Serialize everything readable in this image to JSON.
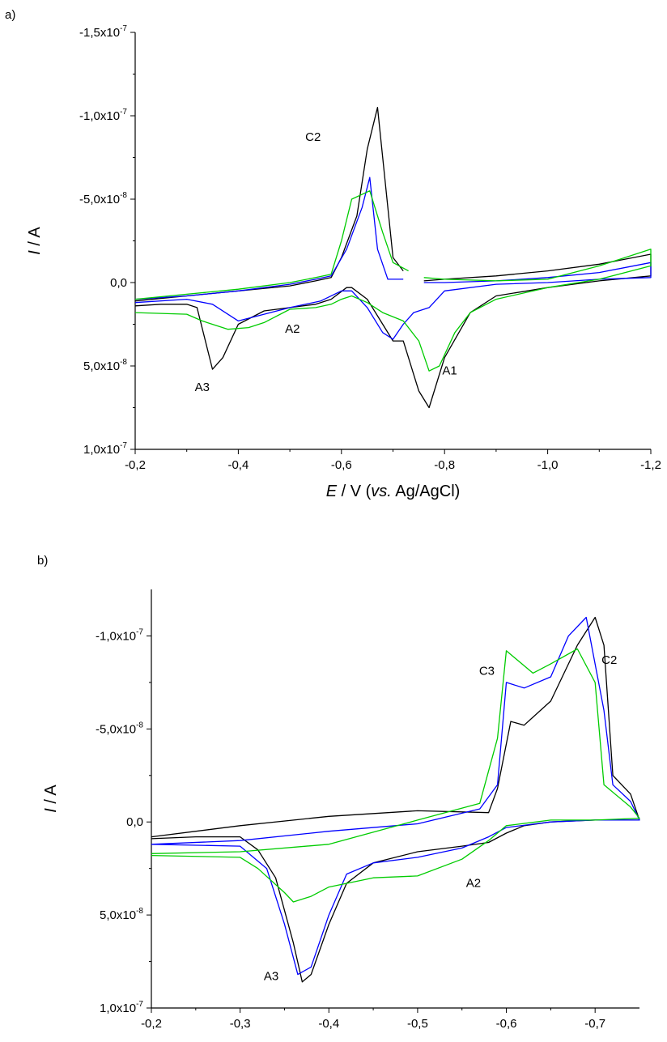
{
  "chart_data": [
    {
      "panel_label": "a)",
      "type": "line",
      "xlabel_parts": [
        "E",
        " / V (",
        "vs.",
        " Ag/AgCl)"
      ],
      "ylabel_parts": [
        "I",
        " / A"
      ],
      "xlim": [
        -0.2,
        -1.2
      ],
      "ylim": [
        1e-07,
        -1.5e-07
      ],
      "x_ticks": [
        -0.2,
        -0.4,
        -0.6,
        -0.8,
        -1.0,
        -1.2
      ],
      "x_tick_labels": [
        "-0,2",
        "-0,4",
        "-0,6",
        "-0,8",
        "-1,0",
        "-1,2"
      ],
      "y_ticks": [
        -1.5e-07,
        -1e-07,
        -5e-08,
        0,
        5e-08,
        1e-07
      ],
      "y_tick_labels": [
        {
          "mant": "-1,5x10",
          "exp": "-7"
        },
        {
          "mant": "-1,0x10",
          "exp": "-7"
        },
        {
          "mant": "-5,0x10",
          "exp": "-8"
        },
        {
          "mant": "0,0",
          "exp": ""
        },
        {
          "mant": "5,0x10",
          "exp": "-8"
        },
        {
          "mant": "1,0x10",
          "exp": "-7"
        }
      ],
      "grid": false,
      "annotations": [
        {
          "text": "C2",
          "x": -0.545,
          "y": -8.5e-08
        },
        {
          "text": "A2",
          "x": -0.505,
          "y": 3e-08
        },
        {
          "text": "A3",
          "x": -0.33,
          "y": 6.5e-08
        },
        {
          "text": "A1",
          "x": -0.81,
          "y": 5.5e-08
        }
      ],
      "series": [
        {
          "color": "#000000",
          "values": [
            [
              -0.2,
              1.4e-08
            ],
            [
              -0.25,
              1.3e-08
            ],
            [
              -0.3,
              1.3e-08
            ],
            [
              -0.32,
              1.5e-08
            ],
            [
              -0.35,
              5.2e-08
            ],
            [
              -0.37,
              4.5e-08
            ],
            [
              -0.4,
              2.5e-08
            ],
            [
              -0.45,
              1.7e-08
            ],
            [
              -0.5,
              1.5e-08
            ],
            [
              -0.55,
              1.3e-08
            ],
            [
              -0.58,
              1e-08
            ],
            [
              -0.61,
              3e-09
            ],
            [
              -0.62,
              3e-09
            ],
            [
              -0.65,
              1e-08
            ],
            [
              -0.68,
              2.5e-08
            ],
            [
              -0.7,
              3.5e-08
            ],
            [
              -0.72,
              3.5e-08
            ],
            [
              -0.75,
              6.5e-08
            ],
            [
              -0.77,
              7.5e-08
            ],
            [
              -0.8,
              4.5e-08
            ],
            [
              -0.85,
              1.8e-08
            ],
            [
              -0.9,
              8e-09
            ],
            [
              -1.0,
              3e-09
            ],
            [
              -1.1,
              -1e-09
            ],
            [
              -1.2,
              -4e-09
            ],
            [
              -1.2,
              -1.7e-08
            ],
            [
              -1.1,
              -1.1e-08
            ],
            [
              -1.0,
              -7e-09
            ],
            [
              -0.9,
              -4e-09
            ],
            [
              -0.8,
              -2e-09
            ],
            [
              -0.76,
              -1e-09
            ],
            null,
            [
              -0.72,
              -7e-09
            ],
            [
              -0.7,
              -1.5e-08
            ],
            [
              -0.67,
              -1.05e-07
            ],
            [
              -0.65,
              -8e-08
            ],
            [
              -0.63,
              -4e-08
            ],
            [
              -0.6,
              -1.5e-08
            ],
            [
              -0.58,
              -3e-09
            ],
            [
              -0.55,
              -1e-09
            ],
            [
              -0.5,
              2e-09
            ],
            [
              -0.4,
              5e-09
            ],
            [
              -0.3,
              8e-09
            ],
            [
              -0.2,
              1.1e-08
            ]
          ]
        },
        {
          "color": "#0000ff",
          "values": [
            [
              -0.2,
              1.2e-08
            ],
            [
              -0.3,
              1e-08
            ],
            [
              -0.35,
              1.3e-08
            ],
            [
              -0.4,
              2.3e-08
            ],
            [
              -0.45,
              1.9e-08
            ],
            [
              -0.5,
              1.5e-08
            ],
            [
              -0.56,
              1.1e-08
            ],
            [
              -0.6,
              5e-09
            ],
            [
              -0.62,
              5e-09
            ],
            [
              -0.65,
              1.5e-08
            ],
            [
              -0.68,
              3e-08
            ],
            [
              -0.7,
              3.4e-08
            ],
            [
              -0.72,
              2.5e-08
            ],
            [
              -0.74,
              1.8e-08
            ],
            [
              -0.77,
              1.5e-08
            ],
            [
              -0.8,
              5e-09
            ],
            [
              -0.9,
              1e-09
            ],
            [
              -1.0,
              0
            ],
            [
              -1.1,
              -2e-09
            ],
            [
              -1.2,
              -3e-09
            ],
            [
              -1.2,
              -1.2e-08
            ],
            [
              -1.1,
              -6e-09
            ],
            [
              -1.0,
              -3e-09
            ],
            [
              -0.9,
              -1e-09
            ],
            [
              -0.8,
              0
            ],
            [
              -0.76,
              0
            ],
            null,
            [
              -0.72,
              -2e-09
            ],
            [
              -0.69,
              -2e-09
            ],
            [
              -0.67,
              -2e-08
            ],
            [
              -0.655,
              -6.3e-08
            ],
            [
              -0.64,
              -4.5e-08
            ],
            [
              -0.61,
              -2e-08
            ],
            [
              -0.58,
              -4e-09
            ],
            [
              -0.55,
              -2e-09
            ],
            [
              -0.5,
              1e-09
            ],
            [
              -0.4,
              5e-09
            ],
            [
              -0.3,
              8e-09
            ],
            [
              -0.2,
              1e-08
            ]
          ]
        },
        {
          "color": "#00cc00",
          "values": [
            [
              -0.2,
              1.8e-08
            ],
            [
              -0.3,
              1.9e-08
            ],
            [
              -0.33,
              2.3e-08
            ],
            [
              -0.38,
              2.8e-08
            ],
            [
              -0.42,
              2.7e-08
            ],
            [
              -0.45,
              2.4e-08
            ],
            [
              -0.5,
              1.6e-08
            ],
            [
              -0.55,
              1.5e-08
            ],
            [
              -0.58,
              1.3e-08
            ],
            [
              -0.6,
              1e-08
            ],
            [
              -0.62,
              8e-09
            ],
            [
              -0.65,
              1.2e-08
            ],
            [
              -0.68,
              1.8e-08
            ],
            [
              -0.72,
              2.3e-08
            ],
            [
              -0.75,
              3.5e-08
            ],
            [
              -0.77,
              5.3e-08
            ],
            [
              -0.79,
              5e-08
            ],
            [
              -0.82,
              3e-08
            ],
            [
              -0.85,
              1.8e-08
            ],
            [
              -0.9,
              1e-08
            ],
            [
              -1.0,
              3e-09
            ],
            [
              -1.1,
              -2e-09
            ],
            [
              -1.2,
              -1e-08
            ],
            [
              -1.2,
              -2e-08
            ],
            [
              -1.1,
              -1e-08
            ],
            [
              -1.05,
              -6e-09
            ],
            [
              -1.0,
              -2e-09
            ],
            [
              -0.9,
              -1e-09
            ],
            [
              -0.8,
              -2e-09
            ],
            [
              -0.76,
              -3e-09
            ],
            null,
            [
              -0.73,
              -7e-09
            ],
            [
              -0.7,
              -1.2e-08
            ],
            [
              -0.68,
              -3e-08
            ],
            [
              -0.655,
              -5.5e-08
            ],
            [
              -0.62,
              -5e-08
            ],
            [
              -0.6,
              -2.5e-08
            ],
            [
              -0.58,
              -5e-09
            ],
            [
              -0.55,
              -3e-09
            ],
            [
              -0.5,
              0
            ],
            [
              -0.4,
              4e-09
            ],
            [
              -0.3,
              7e-09
            ],
            [
              -0.2,
              1e-08
            ]
          ]
        }
      ]
    },
    {
      "panel_label": "b)",
      "type": "line",
      "xlabel_parts": [
        "E",
        " / V (",
        "vs.",
        " Ag/AgCl)"
      ],
      "ylabel_parts": [
        "I",
        " / A"
      ],
      "xlim": [
        -0.2,
        -0.75
      ],
      "ylim": [
        1e-07,
        -1.25e-07
      ],
      "x_ticks": [
        -0.2,
        -0.3,
        -0.4,
        -0.5,
        -0.6,
        -0.7
      ],
      "x_tick_labels": [
        "-0,2",
        "-0,3",
        "-0,4",
        "-0,5",
        "-0,6",
        "-0,7"
      ],
      "y_ticks": [
        -1e-07,
        -5e-08,
        0,
        5e-08,
        1e-07
      ],
      "y_tick_labels": [
        {
          "mant": "-1,0x10",
          "exp": "-7"
        },
        {
          "mant": "-5,0x10",
          "exp": "-8"
        },
        {
          "mant": "0,0",
          "exp": ""
        },
        {
          "mant": "5,0x10",
          "exp": "-8"
        },
        {
          "mant": "1,0x10",
          "exp": "-7"
        }
      ],
      "grid": false,
      "annotations": [
        {
          "text": "C3",
          "x": -0.578,
          "y": -7.9e-08
        },
        {
          "text": "C2",
          "x": -0.716,
          "y": -8.5e-08
        },
        {
          "text": "A2",
          "x": -0.563,
          "y": 3.5e-08
        },
        {
          "text": "A3",
          "x": -0.335,
          "y": 8.5e-08
        }
      ],
      "series": [
        {
          "color": "#000000",
          "values": [
            [
              -0.2,
              9e-09
            ],
            [
              -0.25,
              8e-09
            ],
            [
              -0.3,
              8e-09
            ],
            [
              -0.32,
              1.5e-08
            ],
            [
              -0.34,
              3e-08
            ],
            [
              -0.36,
              6.5e-08
            ],
            [
              -0.37,
              8.6e-08
            ],
            [
              -0.38,
              8.2e-08
            ],
            [
              -0.4,
              5.5e-08
            ],
            [
              -0.42,
              3.3e-08
            ],
            [
              -0.45,
              2.2e-08
            ],
            [
              -0.5,
              1.6e-08
            ],
            [
              -0.55,
              1.3e-08
            ],
            [
              -0.58,
              1.1e-08
            ],
            [
              -0.6,
              6e-09
            ],
            [
              -0.62,
              2e-09
            ],
            [
              -0.65,
              0
            ],
            [
              -0.7,
              -1e-09
            ],
            [
              -0.75,
              -1e-09
            ],
            [
              -0.74,
              -1.5e-08
            ],
            [
              -0.72,
              -2.5e-08
            ],
            [
              -0.71,
              -9.5e-08
            ],
            [
              -0.7,
              -1.1e-07
            ],
            [
              -0.68,
              -9.5e-08
            ],
            [
              -0.65,
              -6.5e-08
            ],
            [
              -0.62,
              -5.2e-08
            ],
            [
              -0.605,
              -5.4e-08
            ],
            [
              -0.59,
              -1.8e-08
            ],
            [
              -0.58,
              -5e-09
            ],
            [
              -0.5,
              -6e-09
            ],
            [
              -0.4,
              -3e-09
            ],
            [
              -0.3,
              2e-09
            ],
            [
              -0.2,
              8e-09
            ]
          ]
        },
        {
          "color": "#0000ff",
          "values": [
            [
              -0.2,
              1.2e-08
            ],
            [
              -0.3,
              1.3e-08
            ],
            [
              -0.33,
              2.5e-08
            ],
            [
              -0.35,
              5.5e-08
            ],
            [
              -0.365,
              8.2e-08
            ],
            [
              -0.38,
              7.8e-08
            ],
            [
              -0.4,
              5e-08
            ],
            [
              -0.42,
              2.8e-08
            ],
            [
              -0.45,
              2.2e-08
            ],
            [
              -0.5,
              1.9e-08
            ],
            [
              -0.55,
              1.4e-08
            ],
            [
              -0.58,
              8e-09
            ],
            [
              -0.6,
              3e-09
            ],
            [
              -0.65,
              0
            ],
            [
              -0.7,
              -1e-09
            ],
            [
              -0.75,
              -1e-09
            ],
            [
              -0.74,
              -1.1e-08
            ],
            [
              -0.72,
              -2e-08
            ],
            [
              -0.71,
              -6e-08
            ],
            [
              -0.69,
              -1.1e-07
            ],
            [
              -0.67,
              -1e-07
            ],
            [
              -0.65,
              -7.8e-08
            ],
            [
              -0.62,
              -7.2e-08
            ],
            [
              -0.6,
              -7.5e-08
            ],
            [
              -0.59,
              -2e-08
            ],
            [
              -0.57,
              -7e-09
            ],
            [
              -0.5,
              1e-09
            ],
            [
              -0.4,
              5e-09
            ],
            [
              -0.3,
              1e-08
            ],
            [
              -0.2,
              1.2e-08
            ]
          ]
        },
        {
          "color": "#00cc00",
          "values": [
            [
              -0.2,
              1.8e-08
            ],
            [
              -0.3,
              1.9e-08
            ],
            [
              -0.32,
              2.5e-08
            ],
            [
              -0.35,
              3.8e-08
            ],
            [
              -0.36,
              4.3e-08
            ],
            [
              -0.38,
              4e-08
            ],
            [
              -0.4,
              3.5e-08
            ],
            [
              -0.45,
              3e-08
            ],
            [
              -0.5,
              2.9e-08
            ],
            [
              -0.55,
              2e-08
            ],
            [
              -0.58,
              1e-08
            ],
            [
              -0.6,
              2e-09
            ],
            [
              -0.65,
              -1e-09
            ],
            [
              -0.7,
              -1e-09
            ],
            [
              -0.75,
              -2e-09
            ],
            [
              -0.74,
              -8e-09
            ],
            [
              -0.71,
              -2e-08
            ],
            [
              -0.7,
              -7.5e-08
            ],
            [
              -0.68,
              -9.3e-08
            ],
            [
              -0.65,
              -8.5e-08
            ],
            [
              -0.63,
              -8e-08
            ],
            [
              -0.6,
              -9.2e-08
            ],
            [
              -0.59,
              -4.5e-08
            ],
            [
              -0.57,
              -1e-08
            ],
            [
              -0.5,
              -1e-09
            ],
            [
              -0.4,
              1.2e-08
            ],
            [
              -0.3,
              1.6e-08
            ],
            [
              -0.2,
              1.7e-08
            ]
          ]
        }
      ]
    }
  ]
}
